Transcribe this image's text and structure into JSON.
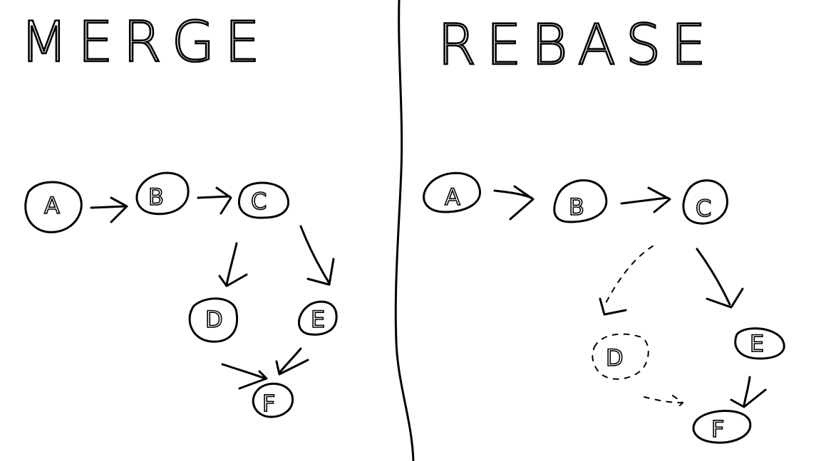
{
  "left": {
    "title": "MERGE",
    "nodes": {
      "a": "A",
      "b": "B",
      "c": "C",
      "d": "D",
      "e": "E",
      "f": "F"
    }
  },
  "right": {
    "title": "REBASE",
    "nodes": {
      "a": "A",
      "b": "B",
      "c": "C",
      "d": "D",
      "e": "E",
      "f": "F"
    }
  }
}
